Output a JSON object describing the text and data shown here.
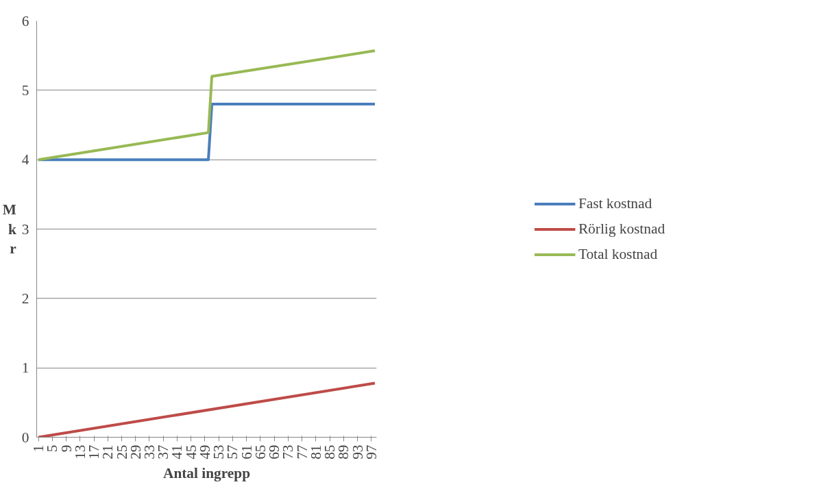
{
  "chart_data": {
    "type": "line",
    "xlabel": "Antal ingrepp",
    "ylabel": "Mkr",
    "xlim": [
      0.5,
      98.5
    ],
    "xticks": [
      1,
      5,
      9,
      13,
      17,
      21,
      25,
      29,
      33,
      37,
      41,
      45,
      49,
      53,
      57,
      61,
      65,
      69,
      73,
      77,
      81,
      85,
      89,
      93,
      97
    ],
    "ylim": [
      0,
      6
    ],
    "yticks": [
      0,
      1,
      2,
      3,
      4,
      5,
      6
    ],
    "grid": "y",
    "legend": "right",
    "marker": "none",
    "line_style": "solid",
    "series": [
      {
        "name": "Fast kostnad",
        "color": "#4a7ebb",
        "x": [
          1,
          50,
          51,
          98
        ],
        "values": [
          4,
          4,
          4.8,
          4.8
        ]
      },
      {
        "name": "Rörlig kostnad",
        "color": "#be4b48",
        "x": [
          1,
          98
        ],
        "values": [
          0,
          0.78
        ]
      },
      {
        "name": "Total kostnad",
        "color": "#98b954",
        "x": [
          1,
          50,
          51,
          98
        ],
        "values": [
          4,
          4.39,
          5.2,
          5.57
        ]
      }
    ]
  }
}
